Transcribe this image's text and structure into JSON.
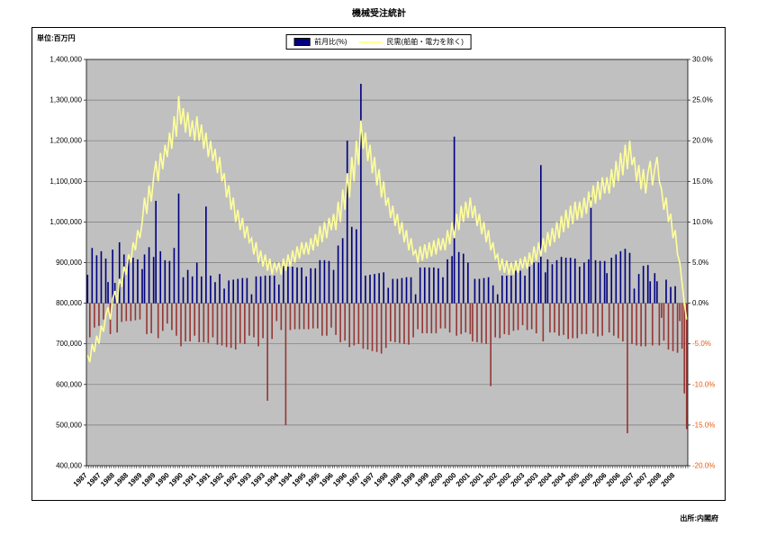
{
  "page": {
    "title": "機械受注統計",
    "unit_label": "単位:百万円",
    "source": "出所:内閣府"
  },
  "legend": {
    "bar_series_label": "前月比(%)",
    "line_series_label": "民需(船舶・電力を除く)"
  },
  "colors": {
    "plot_bg": "#C0C0C0",
    "grid": "#7A7A7A",
    "bar_positive": "#000080",
    "bar_negative": "#953735",
    "line": "#FFFF99",
    "axis_negative_label": "#E8590C"
  },
  "chart_data": {
    "type": "combo (bar + line)",
    "title": "機械受注統計",
    "x_unit": "month",
    "x_start": "1987-01",
    "x_end": "2008-12",
    "x_tick_years": [
      1987,
      1988,
      1989,
      1990,
      1991,
      1992,
      1993,
      1994,
      1995,
      1996,
      1997,
      1998,
      1999,
      2000,
      2001,
      2002,
      2003,
      2004,
      2005,
      2006,
      2007,
      2008
    ],
    "left_axis": {
      "label": "百万円",
      "min": 400000,
      "max": 1400000,
      "step": 100000
    },
    "right_axis": {
      "label": "%",
      "min": -20,
      "max": 30,
      "step": 5
    },
    "grid": "horizontal",
    "legend_position": "top-center",
    "series": [
      {
        "name": "前月比(%)",
        "type": "bar",
        "axis": "right",
        "unit": "%",
        "values": [
          3.5,
          -4.2,
          6.8,
          -3.0,
          5.9,
          -2.8,
          6.4,
          -2.0,
          5.5,
          2.6,
          -3.8,
          6.6,
          2.5,
          -3.6,
          7.5,
          -2.3,
          6.0,
          -2.2,
          5.7,
          -2.2,
          5.6,
          -2.1,
          5.4,
          -2.0,
          4.2,
          6.0,
          -3.8,
          6.9,
          -3.7,
          5.7,
          12.6,
          -4.3,
          6.4,
          -3.4,
          5.3,
          -2.5,
          5.2,
          -3.3,
          6.8,
          -4.0,
          13.5,
          -5.3,
          3.2,
          -4.7,
          4.1,
          -4.7,
          3.3,
          -4.0,
          5.0,
          -4.8,
          3.3,
          -4.8,
          11.9,
          -4.9,
          3.4,
          -4.2,
          2.6,
          -5.1,
          3.6,
          -5.2,
          1.8,
          -5.4,
          2.8,
          -5.5,
          2.9,
          -5.7,
          3.0,
          -4.9,
          3.1,
          -5.0,
          3.1,
          -4.0,
          1.1,
          -4.2,
          3.3,
          -5.3,
          3.3,
          -4.3,
          3.4,
          -12.0,
          3.4,
          -4.4,
          3.4,
          -2.2,
          2.3,
          -3.3,
          4.6,
          -15.0,
          4.5,
          -3.3,
          4.5,
          -3.2,
          4.4,
          -3.2,
          4.4,
          -3.2,
          3.3,
          -3.2,
          4.3,
          -3.1,
          4.3,
          -3.1,
          5.3,
          -4.0,
          5.3,
          -4.0,
          5.2,
          -3.0,
          4.1,
          -3.9,
          7.1,
          -4.8,
          8.0,
          -4.6,
          20.0,
          -5.4,
          9.4,
          -5.2,
          9.1,
          -5.0,
          27.0,
          -5.6,
          3.4,
          -5.7,
          3.5,
          -5.9,
          3.6,
          -6.0,
          3.7,
          -6.2,
          3.8,
          -5.5,
          1.9,
          -4.7,
          3.0,
          -4.8,
          3.0,
          -4.9,
          3.1,
          -5.0,
          3.2,
          -5.1,
          3.2,
          -4.2,
          1.1,
          -3.2,
          4.4,
          -3.7,
          4.4,
          -3.7,
          4.4,
          -3.7,
          4.4,
          -3.7,
          4.3,
          -3.1,
          3.2,
          -3.1,
          5.4,
          -3.6,
          5.8,
          20.5,
          -4.0,
          6.3,
          -3.8,
          6.1,
          -3.6,
          5.0,
          -3.8,
          -4.7,
          3.0,
          -4.8,
          3.0,
          -4.9,
          3.1,
          -5.0,
          3.2,
          -10.2,
          2.2,
          -4.2,
          1.1,
          -4.3,
          3.4,
          -3.8,
          3.4,
          -3.9,
          3.4,
          -3.4,
          4.0,
          -3.3,
          4.0,
          -2.7,
          3.4,
          -3.3,
          4.5,
          -3.2,
          5.0,
          -3.7,
          5.0,
          17.0,
          -4.7,
          3.8,
          5.4,
          -3.6,
          4.8,
          -3.6,
          5.3,
          -4.0,
          5.7,
          -3.9,
          5.6,
          -4.4,
          5.6,
          -4.3,
          5.5,
          -4.3,
          4.5,
          -3.8,
          5.0,
          -3.8,
          5.4,
          13.0,
          -3.7,
          5.3,
          -4.1,
          5.2,
          -4.0,
          5.2,
          3.7,
          -3.6,
          5.6,
          -4.0,
          6.0,
          -4.3,
          6.4,
          -4.7,
          6.7,
          -16.0,
          6.2,
          -5.0,
          1.8,
          -5.2,
          3.6,
          -5.3,
          4.6,
          -5.3,
          4.7,
          2.7,
          -5.2,
          3.7,
          2.7,
          -5.2,
          -1.8,
          -4.6,
          2.9,
          -5.7,
          2.0,
          -5.9,
          2.1,
          -6.1,
          -2.2,
          -5.6,
          -11.1,
          -15.5
        ]
      },
      {
        "name": "民需(船舶・電力を除く)",
        "type": "line",
        "axis": "left",
        "unit": "百万円",
        "values": [
          672000,
          655000,
          700000,
          680000,
          720000,
          700000,
          745000,
          730000,
          770000,
          790000,
          760000,
          810000,
          830000,
          800000,
          860000,
          840000,
          890000,
          870000,
          920000,
          900000,
          950000,
          930000,
          980000,
          960000,
          1000000,
          1060000,
          1020000,
          1090000,
          1050000,
          1110000,
          1150000,
          1100000,
          1170000,
          1130000,
          1190000,
          1160000,
          1220000,
          1180000,
          1260000,
          1210000,
          1310000,
          1240000,
          1280000,
          1220000,
          1270000,
          1210000,
          1250000,
          1200000,
          1260000,
          1200000,
          1240000,
          1180000,
          1220000,
          1160000,
          1200000,
          1150000,
          1180000,
          1120000,
          1160000,
          1100000,
          1120000,
          1060000,
          1090000,
          1030000,
          1060000,
          1000000,
          1030000,
          980000,
          1010000,
          960000,
          990000,
          950000,
          960000,
          920000,
          950000,
          900000,
          930000,
          890000,
          920000,
          880000,
          910000,
          870000,
          900000,
          880000,
          900000,
          870000,
          910000,
          880000,
          920000,
          890000,
          930000,
          900000,
          940000,
          910000,
          950000,
          920000,
          950000,
          920000,
          960000,
          930000,
          970000,
          940000,
          990000,
          950000,
          1000000,
          960000,
          1010000,
          980000,
          1020000,
          980000,
          1050000,
          1000000,
          1080000,
          1030000,
          1120000,
          1060000,
          1160000,
          1100000,
          1200000,
          1140000,
          1250000,
          1180000,
          1220000,
          1150000,
          1190000,
          1120000,
          1160000,
          1090000,
          1130000,
          1060000,
          1100000,
          1040000,
          1060000,
          1010000,
          1040000,
          990000,
          1020000,
          970000,
          1000000,
          950000,
          980000,
          930000,
          960000,
          920000,
          930000,
          900000,
          940000,
          905000,
          945000,
          910000,
          950000,
          915000,
          955000,
          920000,
          960000,
          930000,
          960000,
          930000,
          980000,
          945000,
          1000000,
          960000,
          1020000,
          980000,
          1040000,
          1000000,
          1050000,
          1010000,
          1060000,
          1010000,
          1040000,
          990000,
          1020000,
          970000,
          1000000,
          950000,
          980000,
          930000,
          950000,
          910000,
          920000,
          880000,
          910000,
          875000,
          905000,
          870000,
          900000,
          870000,
          905000,
          875000,
          910000,
          885000,
          915000,
          885000,
          925000,
          895000,
          940000,
          905000,
          950000,
          915000,
          960000,
          925000,
          975000,
          940000,
          985000,
          950000,
          1000000,
          960000,
          1015000,
          975000,
          1030000,
          985000,
          1040000,
          995000,
          1050000,
          1005000,
          1050000,
          1010000,
          1060000,
          1020000,
          1075000,
          1035000,
          1090000,
          1045000,
          1100000,
          1055000,
          1110000,
          1070000,
          1110000,
          1070000,
          1130000,
          1085000,
          1150000,
          1100000,
          1170000,
          1115000,
          1190000,
          1130000,
          1200000,
          1140000,
          1160000,
          1100000,
          1140000,
          1080000,
          1130000,
          1070000,
          1120000,
          1150000,
          1090000,
          1130000,
          1160000,
          1100000,
          1080000,
          1030000,
          1060000,
          1000000,
          1020000,
          960000,
          980000,
          920000,
          900000,
          850000,
          800000,
          760000
        ]
      }
    ]
  }
}
